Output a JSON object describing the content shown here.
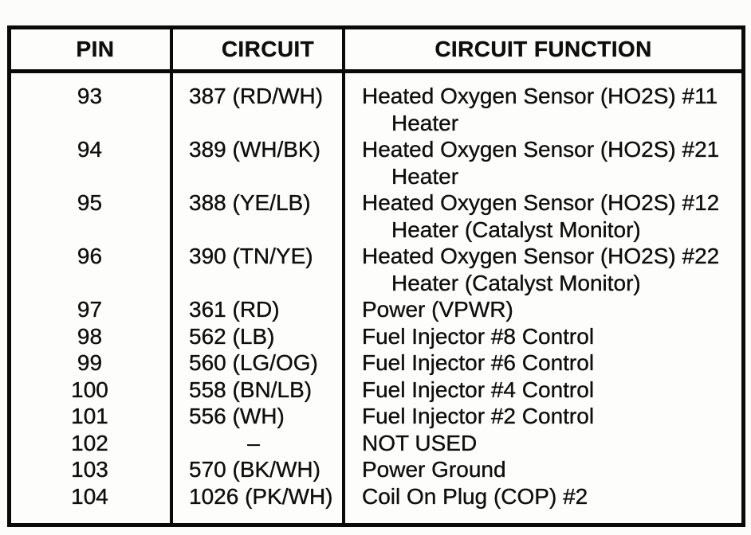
{
  "page": {
    "background_color": "#fcfcfa",
    "ink_color": "#0a0a0a"
  },
  "table": {
    "headers": [
      {
        "id": "pin",
        "label": "PIN"
      },
      {
        "id": "circuit",
        "label": "CIRCUIT"
      },
      {
        "id": "function",
        "label": "CIRCUIT FUNCTION"
      }
    ],
    "rows": [
      {
        "pin": "93",
        "circuit": "387 (RD/WH)",
        "function_lines": [
          "Heated Oxygen Sensor (HO2S) #11",
          "Heater"
        ]
      },
      {
        "pin": "94",
        "circuit": "389 (WH/BK)",
        "function_lines": [
          "Heated Oxygen Sensor (HO2S) #21",
          "Heater"
        ]
      },
      {
        "pin": "95",
        "circuit": "388 (YE/LB)",
        "function_lines": [
          "Heated Oxygen Sensor (HO2S) #12",
          "Heater (Catalyst Monitor)"
        ]
      },
      {
        "pin": "96",
        "circuit": "390 (TN/YE)",
        "function_lines": [
          "Heated Oxygen Sensor (HO2S) #22",
          "Heater (Catalyst Monitor)"
        ]
      },
      {
        "pin": "97",
        "circuit": "361 (RD)",
        "function_lines": [
          "Power (VPWR)"
        ]
      },
      {
        "pin": "98",
        "circuit": "562 (LB)",
        "function_lines": [
          "Fuel Injector #8 Control"
        ]
      },
      {
        "pin": "99",
        "circuit": "560 (LG/OG)",
        "function_lines": [
          "Fuel Injector #6 Control"
        ]
      },
      {
        "pin": "100",
        "circuit": "558 (BN/LB)",
        "function_lines": [
          "Fuel Injector #4 Control"
        ]
      },
      {
        "pin": "101",
        "circuit": "556 (WH)",
        "function_lines": [
          "Fuel Injector #2 Control"
        ]
      },
      {
        "pin": "102",
        "circuit": "–",
        "function_lines": [
          "NOT USED"
        ]
      },
      {
        "pin": "103",
        "circuit": "570 (BK/WH)",
        "function_lines": [
          "Power Ground"
        ]
      },
      {
        "pin": "104",
        "circuit": "1026 (PK/WH)",
        "function_lines": [
          "Coil On Plug (COP) #2"
        ]
      }
    ]
  }
}
